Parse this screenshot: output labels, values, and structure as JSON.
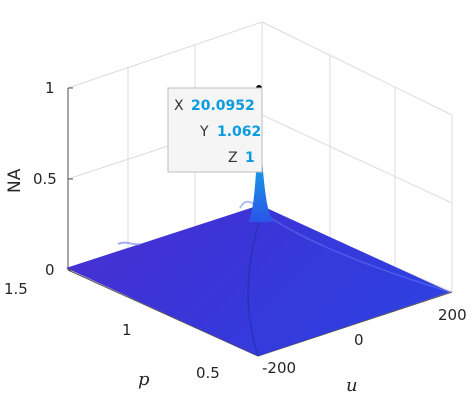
{
  "chart_data": {
    "type": "surface",
    "zlabel": "NA",
    "xlabel": "u",
    "ylabel": "p",
    "x_ticks": [
      "-200",
      "0",
      "200"
    ],
    "y_ticks": [
      "1.5",
      "1",
      "0.5"
    ],
    "z_ticks": [
      "0",
      "0.5",
      "1"
    ],
    "xlim": [
      -250,
      250
    ],
    "ylim": [
      0.5,
      1.5
    ],
    "zlim": [
      0,
      1
    ],
    "grid": true,
    "colormap": [
      "#3b22c8",
      "#2a55e8",
      "#1a8fe6",
      "#23c0c8",
      "#9ed34a",
      "#f6e32a"
    ],
    "peak": {
      "x": 20.0952,
      "y": 1.062,
      "z": 1
    },
    "datatip": {
      "rows": [
        {
          "key": "X",
          "value": "20.0952"
        },
        {
          "key": "Y",
          "value": "1.062"
        },
        {
          "key": "Z",
          "value": "1"
        }
      ]
    }
  }
}
